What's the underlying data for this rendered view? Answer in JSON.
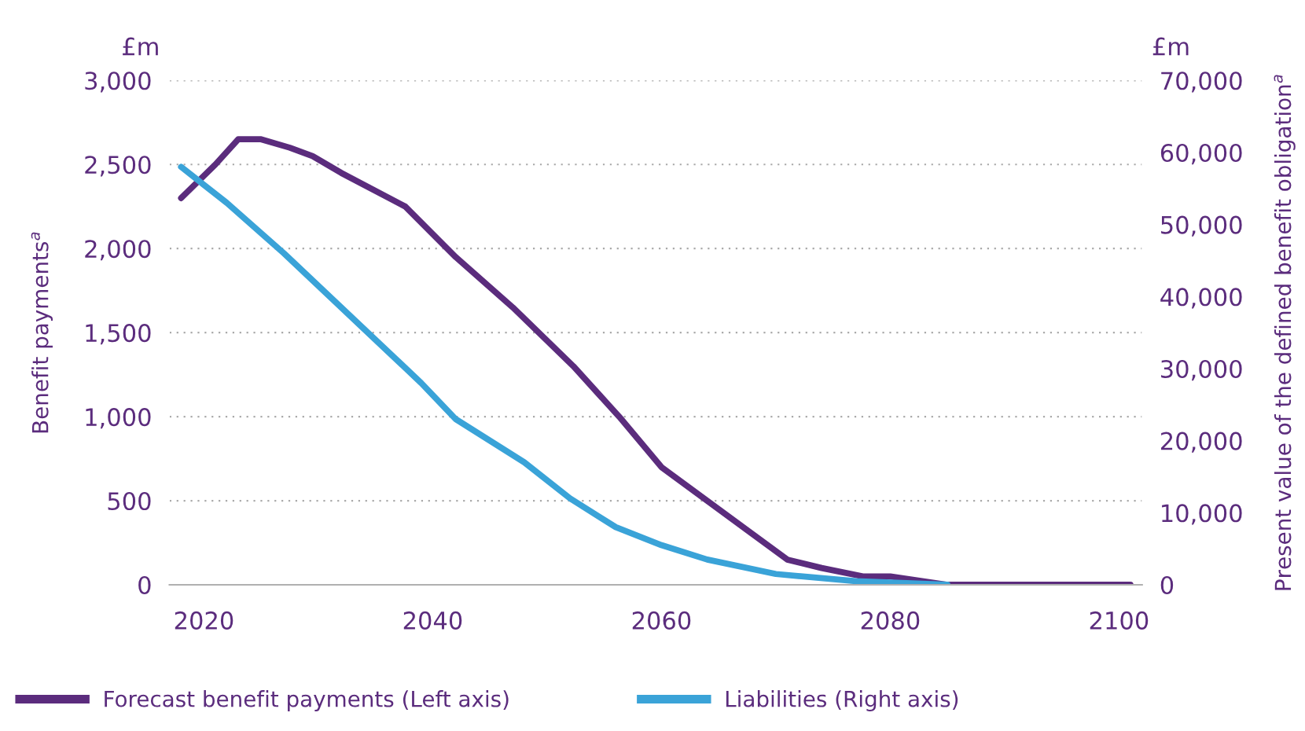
{
  "chart_data": {
    "type": "line",
    "xlabel": null,
    "ylabel": "Benefit payments$^{a}$",
    "y2label": "Present value of the defined benefit obligation$^{a}$",
    "annotations": [
      "£m",
      "£m"
    ],
    "series": [
      {
        "name": "Forecast benefit payments (Left axis)",
        "color": "#5b2c7d",
        "x": [
          2018,
          2021,
          2023,
          2025,
          2027.5,
          2029.5,
          2032,
          2037.6,
          2042,
          2047,
          2052.3,
          2056.3,
          2060,
          2064,
          2068,
          2071,
          2074,
          2077.6,
          2080,
          2085,
          2090,
          2095,
          2101
        ],
        "values": [
          2300,
          2500,
          2650,
          2650,
          2600,
          2550,
          2450,
          2250,
          1950,
          1650,
          1300,
          1000,
          700,
          500,
          300,
          150,
          100,
          50,
          50,
          0,
          0,
          0,
          0
        ]
      },
      {
        "name": "Liabilities (Right axis)",
        "color": "#3aa3d8",
        "axis": "y2",
        "x": [
          2018,
          2022,
          2027,
          2031,
          2035,
          2039,
          2042,
          2045,
          2048,
          2052,
          2056,
          2060,
          2064,
          2070,
          2077,
          2085
        ],
        "values": [
          58000,
          53000,
          46000,
          40000,
          34000,
          28000,
          23000,
          20000,
          17000,
          12000,
          8000,
          5500,
          3500,
          1500,
          500,
          0
        ]
      }
    ],
    "xlim": [
      2017,
      2102
    ],
    "xticks": [
      2020,
      2040,
      2060,
      2080,
      2100
    ],
    "ylim": [
      0,
      3000
    ],
    "yticks": [
      {
        "value": 0,
        "label": "0"
      },
      {
        "value": 500,
        "label": "500"
      },
      {
        "value": 1000,
        "label": "1,000"
      },
      {
        "value": 1500,
        "label": "1,500"
      },
      {
        "value": 2000,
        "label": "2,000"
      },
      {
        "value": 2500,
        "label": "2,500"
      },
      {
        "value": 3000,
        "label": "3,000"
      }
    ],
    "y2lim": [
      0,
      70000
    ],
    "y2ticks": [
      {
        "value": 0,
        "label": "0"
      },
      {
        "value": 10000,
        "label": "10,000"
      },
      {
        "value": 20000,
        "label": "20,000"
      },
      {
        "value": 30000,
        "label": "30,000"
      },
      {
        "value": 40000,
        "label": "40,000"
      },
      {
        "value": 50000,
        "label": "50,000"
      },
      {
        "value": 60000,
        "label": "60,000"
      },
      {
        "value": 70000,
        "label": "70,000"
      }
    ],
    "grid": "y",
    "legend": "bottom",
    "marker": "none",
    "line_style": "solid"
  }
}
